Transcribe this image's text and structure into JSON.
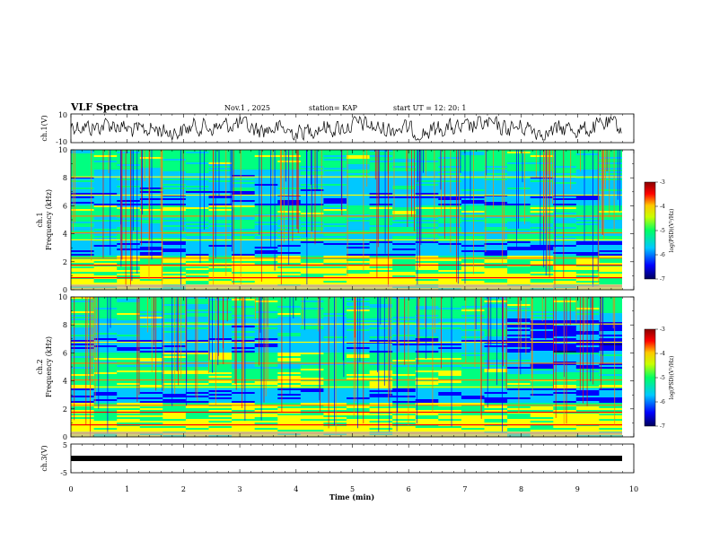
{
  "header": {
    "title": "VLF Spectra",
    "date": "Nov.1  , 2025",
    "station": "station= KAP",
    "start": "start  UT =   12: 20: 1"
  },
  "chart_data": [
    {
      "type": "line",
      "name": "ch1-waveform",
      "ylabel": "ch.1(V)",
      "ylim": [
        -10,
        10
      ],
      "yticks": [
        "10",
        "-10"
      ],
      "xlim": [
        0,
        9.83
      ],
      "signal": "noisy waveform roughly between -6 and 6 V"
    },
    {
      "type": "heatmap",
      "name": "ch1-spectrogram",
      "ylabel": "ch.1\nFrequency  (kHz)",
      "ylim": [
        0,
        10
      ],
      "yticks": [
        "0",
        "2",
        "4",
        "6",
        "8",
        "10"
      ],
      "xlim": [
        0,
        9.83
      ],
      "colorbar": {
        "label": "log(PSD)(V²/Hz)",
        "ticks": [
          "-3",
          "-4",
          "-5",
          "-6",
          "-7"
        ],
        "range": [
          -7,
          -3
        ]
      }
    },
    {
      "type": "heatmap",
      "name": "ch2-spectrogram",
      "ylabel": "ch.2\nFrequency  (kHz)",
      "ylim": [
        0,
        10
      ],
      "yticks": [
        "0",
        "2",
        "4",
        "6",
        "8",
        "10"
      ],
      "xlim": [
        0,
        9.83
      ],
      "colorbar": {
        "label": "log(PSD)(V²/Hz)",
        "ticks": [
          "-3",
          "-4",
          "-5",
          "-6",
          "-7"
        ],
        "range": [
          -7,
          -3
        ]
      }
    },
    {
      "type": "line",
      "name": "ch3-trace",
      "ylabel": "ch.3(V)",
      "ylim": [
        -5,
        5
      ],
      "yticks": [
        "5",
        "-5"
      ],
      "xlim": [
        0,
        9.83
      ],
      "signal": "thick constant level near 0 V"
    }
  ],
  "xaxis": {
    "label": "Time  (min)",
    "range": [
      0,
      10
    ],
    "ticks": [
      "0",
      "1",
      "2",
      "3",
      "4",
      "5",
      "6",
      "7",
      "8",
      "9",
      "10"
    ]
  },
  "colors": {
    "scale": [
      "#00008b",
      "#0000ff",
      "#00c8ff",
      "#00ff80",
      "#ffff00",
      "#ff8000",
      "#ff0000",
      "#8b0000"
    ]
  }
}
